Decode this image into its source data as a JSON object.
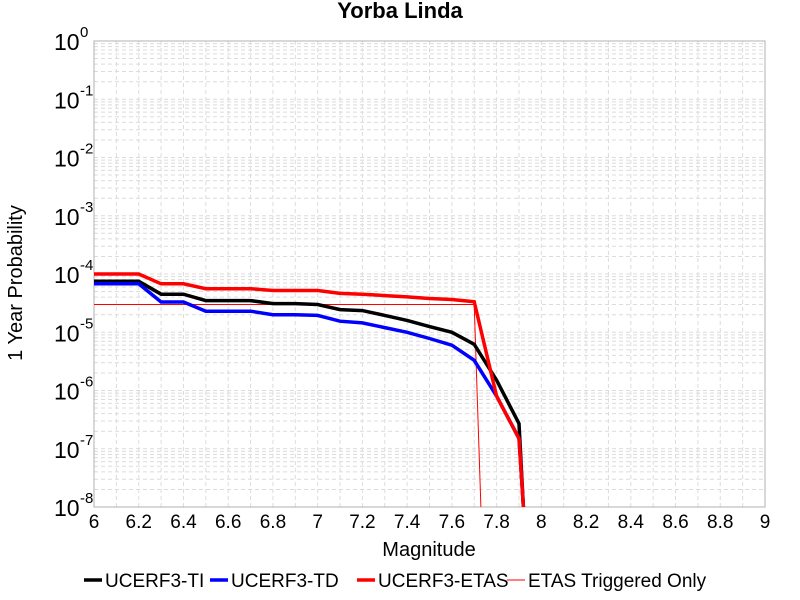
{
  "chart_data": {
    "type": "line",
    "title": "Yorba Linda",
    "xlabel": "Magnitude",
    "ylabel": "1 Year Probability",
    "xlim": [
      6,
      9
    ],
    "ylim": [
      1e-08,
      1
    ],
    "yscale": "log",
    "grid": true,
    "x_ticks": [
      "6",
      "6.2",
      "6.4",
      "6.6",
      "6.8",
      "7",
      "7.2",
      "7.4",
      "7.6",
      "7.8",
      "8",
      "8.2",
      "8.4",
      "8.6",
      "8.8",
      "9"
    ],
    "y_ticks": [
      {
        "base": "10",
        "exp": "0"
      },
      {
        "base": "10",
        "exp": "-1"
      },
      {
        "base": "10",
        "exp": "-2"
      },
      {
        "base": "10",
        "exp": "-3"
      },
      {
        "base": "10",
        "exp": "-4"
      },
      {
        "base": "10",
        "exp": "-5"
      },
      {
        "base": "10",
        "exp": "-6"
      },
      {
        "base": "10",
        "exp": "-7"
      },
      {
        "base": "10",
        "exp": "-8"
      }
    ],
    "legend_position": "bottom",
    "series": [
      {
        "name": "UCERF3-TI",
        "color": "#000000",
        "width": 3.5,
        "x": [
          6.0,
          6.2,
          6.3,
          6.4,
          6.5,
          6.6,
          6.7,
          6.8,
          6.9,
          7.0,
          7.1,
          7.2,
          7.3,
          7.4,
          7.5,
          7.6,
          7.7,
          7.8,
          7.9,
          7.92
        ],
        "y": [
          7.5e-05,
          7.5e-05,
          4.5e-05,
          4.5e-05,
          3.5e-05,
          3.5e-05,
          3.5e-05,
          3.1e-05,
          3.1e-05,
          3e-05,
          2.45e-05,
          2.35e-05,
          1.95e-05,
          1.6e-05,
          1.25e-05,
          1e-05,
          6.2e-06,
          1.5e-06,
          2.7e-07,
          1e-08
        ]
      },
      {
        "name": "UCERF3-TD",
        "color": "#0000ff",
        "width": 3.5,
        "x": [
          6.0,
          6.2,
          6.3,
          6.4,
          6.5,
          6.6,
          6.7,
          6.8,
          6.9,
          7.0,
          7.1,
          7.2,
          7.3,
          7.4,
          7.5,
          7.6,
          7.7,
          7.8,
          7.9,
          7.92
        ],
        "y": [
          6.8e-05,
          6.8e-05,
          3.3e-05,
          3.3e-05,
          2.3e-05,
          2.3e-05,
          2.3e-05,
          2e-05,
          2e-05,
          1.95e-05,
          1.55e-05,
          1.45e-05,
          1.2e-05,
          1e-05,
          7.8e-06,
          6e-06,
          3.3e-06,
          8e-07,
          1.5e-07,
          1e-08
        ]
      },
      {
        "name": "UCERF3-ETAS",
        "color": "#ff0000",
        "width": 3.5,
        "x": [
          6.0,
          6.2,
          6.3,
          6.4,
          6.5,
          6.6,
          6.7,
          6.8,
          6.9,
          7.0,
          7.1,
          7.2,
          7.3,
          7.4,
          7.5,
          7.6,
          7.7,
          7.8,
          7.9,
          7.92
        ],
        "y": [
          0.0001,
          0.0001,
          6.8e-05,
          6.8e-05,
          5.6e-05,
          5.6e-05,
          5.6e-05,
          5.2e-05,
          5.2e-05,
          5.2e-05,
          4.65e-05,
          4.5e-05,
          4.25e-05,
          4.05e-05,
          3.8e-05,
          3.65e-05,
          3.35e-05,
          8e-07,
          1.5e-07,
          1e-08
        ]
      },
      {
        "name": "ETAS Triggered Only",
        "color": "#ff0000",
        "width": 1,
        "x": [
          6.0,
          6.5,
          7.0,
          7.5,
          7.7,
          7.73
        ],
        "y": [
          3e-05,
          3e-05,
          3e-05,
          3e-05,
          3e-05,
          1e-08
        ]
      }
    ]
  }
}
